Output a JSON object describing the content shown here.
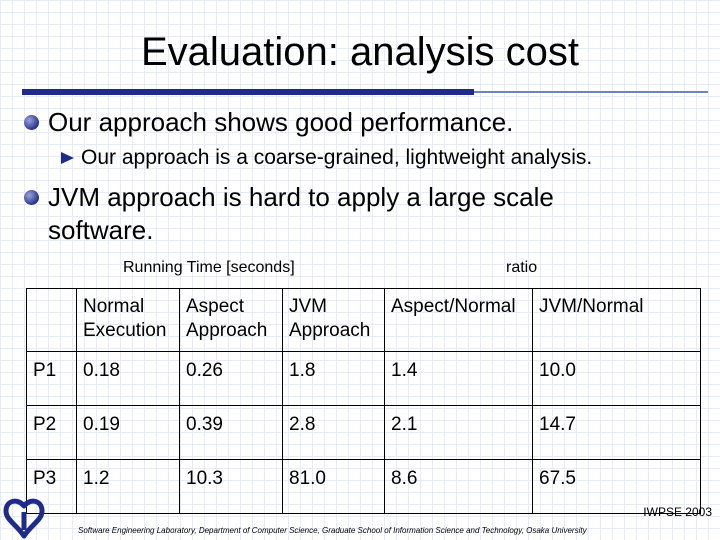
{
  "slide": {
    "title": "Evaluation: analysis cost",
    "bullets": [
      "Our approach shows good performance.",
      "Our approach is a coarse-grained, lightweight analysis.",
      "JVM approach is hard to apply a large scale",
      "software."
    ]
  },
  "table": {
    "caption_left": "Running Time [seconds]",
    "caption_right": "ratio",
    "headers": [
      [
        "Normal",
        "Execution"
      ],
      [
        "Aspect",
        "Approach"
      ],
      [
        "JVM",
        "Approach"
      ],
      [
        "Aspect/Normal"
      ],
      [
        "JVM/Normal"
      ]
    ],
    "rows": [
      [
        "P1",
        "0.18",
        "0.26",
        "1.8",
        "1.4",
        "10.0"
      ],
      [
        "P2",
        "0.19",
        "0.39",
        "2.8",
        "2.1",
        "14.7"
      ],
      [
        "P3",
        "1.2",
        "10.3",
        "81.0",
        "8.6",
        "67.5"
      ]
    ]
  },
  "footer": {
    "conference": "IWPSE 2003",
    "lab": "Software Engineering Laboratory, Department of Computer Science, Graduate School of Information Science and Technology, Osaka University"
  },
  "colors": {
    "accent": "#1f2b8a",
    "accent_light": "#6f83c4"
  }
}
